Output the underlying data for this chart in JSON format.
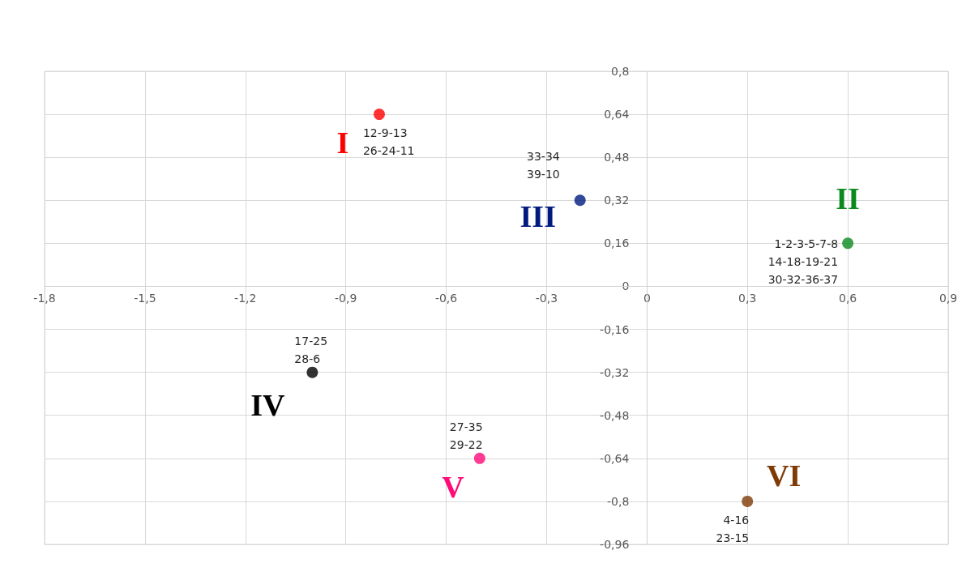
{
  "chart_data": {
    "type": "scatter",
    "marker": "circle",
    "grid": true,
    "legend": false,
    "xlim": [
      -1.8,
      0.9
    ],
    "xticks": [
      {
        "value": -1.8,
        "label": "-1,8"
      },
      {
        "value": -1.5,
        "label": "-1,5"
      },
      {
        "value": -1.2,
        "label": "-1,2"
      },
      {
        "value": -0.9,
        "label": "-0,9"
      },
      {
        "value": -0.6,
        "label": "-0,6"
      },
      {
        "value": -0.3,
        "label": "-0,3"
      },
      0,
      {
        "value": 0.3,
        "label": "0,3"
      },
      {
        "value": 0.6,
        "label": "0,6"
      },
      {
        "value": 0.9,
        "label": "0,9"
      }
    ],
    "ylim": [
      -0.96,
      0.8
    ],
    "yticks": [
      {
        "value": -0.96,
        "label": "-0,96"
      },
      {
        "value": -0.8,
        "label": "-0,8"
      },
      {
        "value": -0.64,
        "label": "-0,64"
      },
      {
        "value": -0.48,
        "label": "-0,48"
      },
      {
        "value": -0.32,
        "label": "-0,32"
      },
      {
        "value": -0.16,
        "label": "-0,16"
      },
      0,
      {
        "value": 0.16,
        "label": "0,16"
      },
      {
        "value": 0.32,
        "label": "0,32"
      },
      {
        "value": 0.48,
        "label": "0,48"
      },
      {
        "value": 0.64,
        "label": "0,64"
      },
      {
        "value": 0.8,
        "label": "0,8"
      }
    ],
    "series": [
      {
        "name": "I",
        "color": "#ff0000",
        "x": [
          -0.8
        ],
        "values": [
          0.64
        ]
      },
      {
        "name": "III",
        "color": "#001a80",
        "x": [
          -0.2
        ],
        "values": [
          0.32
        ]
      },
      {
        "name": "II",
        "color": "#0a8a1e",
        "x": [
          0.6
        ],
        "values": [
          0.16
        ]
      },
      {
        "name": "IV",
        "color": "#000000",
        "x": [
          -1.0
        ],
        "values": [
          -0.32
        ]
      },
      {
        "name": "V",
        "color": "#ff0a78",
        "x": [
          -0.5
        ],
        "values": [
          -0.64
        ]
      },
      {
        "name": "VI",
        "color": "#7f3a06",
        "x": [
          0.3
        ],
        "values": [
          -0.8
        ]
      }
    ],
    "annotations": [
      {
        "text": "12-9-13\n26-24-11",
        "x": -0.8,
        "y": 0.64
      },
      {
        "text": "33-34\n39-10",
        "x": -0.2,
        "y": 0.32
      },
      {
        "text": "1-2-3-5-7-8\n14-18-19-21\n30-32-36-37",
        "x": 0.6,
        "y": 0.16
      },
      {
        "text": "17-25\n28-6",
        "x": -1.0,
        "y": -0.32
      },
      {
        "text": "27-35\n29-22",
        "x": -0.5,
        "y": -0.64
      },
      {
        "text": "4-16\n23-15",
        "x": 0.3,
        "y": -0.8
      }
    ]
  }
}
